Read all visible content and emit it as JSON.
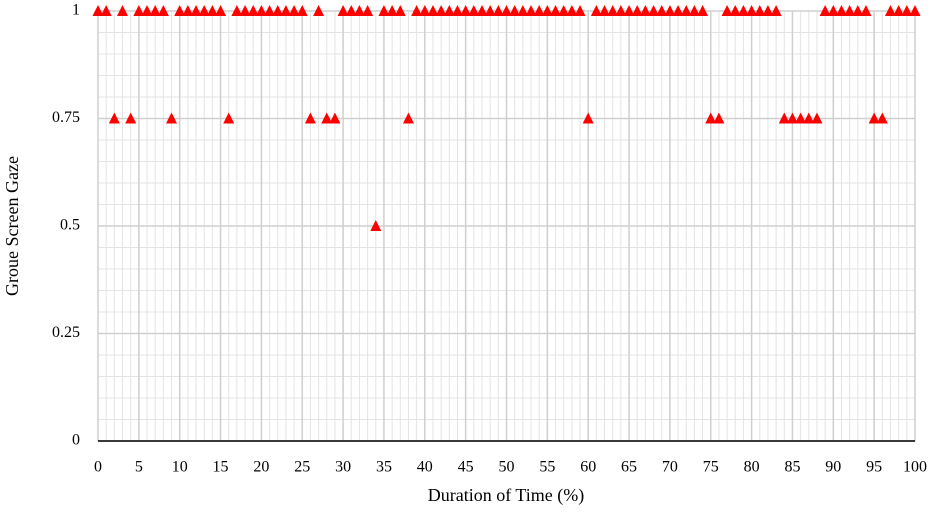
{
  "chart_data": {
    "type": "scatter",
    "x_label": "Duration of Time (%)",
    "y_label": "Groue Screen Gaze",
    "color": "#ff0000",
    "marker": "triangle",
    "grid": true,
    "xlim": [
      0,
      100
    ],
    "xticks": [
      0,
      5,
      10,
      15,
      20,
      25,
      30,
      35,
      40,
      45,
      50,
      55,
      60,
      65,
      70,
      75,
      80,
      85,
      90,
      95,
      100
    ],
    "ylim": [
      0,
      1
    ],
    "yticks": [
      0,
      0.25,
      0.5,
      0.75,
      1
    ],
    "x": [
      0,
      1,
      2,
      3,
      4,
      5,
      6,
      7,
      8,
      9,
      10,
      11,
      12,
      13,
      14,
      15,
      16,
      17,
      18,
      19,
      20,
      21,
      22,
      23,
      24,
      25,
      26,
      27,
      28,
      29,
      30,
      31,
      32,
      33,
      34,
      35,
      36,
      37,
      38,
      39,
      40,
      41,
      42,
      43,
      44,
      45,
      46,
      47,
      48,
      49,
      50,
      51,
      52,
      53,
      54,
      55,
      56,
      57,
      58,
      59,
      60,
      61,
      62,
      63,
      64,
      65,
      66,
      67,
      68,
      69,
      70,
      71,
      72,
      73,
      74,
      75,
      76,
      77,
      78,
      79,
      80,
      81,
      82,
      83,
      84,
      85,
      86,
      87,
      88,
      89,
      90,
      91,
      92,
      93,
      94,
      95,
      96,
      97,
      98,
      99,
      100
    ],
    "values": [
      1,
      1,
      0.75,
      1,
      0.75,
      1,
      1,
      1,
      1,
      0.75,
      1,
      1,
      1,
      1,
      1,
      1,
      0.75,
      1,
      1,
      1,
      1,
      1,
      1,
      1,
      1,
      1,
      0.75,
      1,
      0.75,
      0.75,
      1,
      1,
      1,
      1,
      0.5,
      1,
      1,
      1,
      0.75,
      1,
      1,
      1,
      1,
      1,
      1,
      1,
      1,
      1,
      1,
      1,
      1,
      1,
      1,
      1,
      1,
      1,
      1,
      1,
      1,
      1,
      0.75,
      1,
      1,
      1,
      1,
      1,
      1,
      1,
      1,
      1,
      1,
      1,
      1,
      1,
      1,
      0.75,
      0.75,
      1,
      1,
      1,
      1,
      1,
      1,
      1,
      0.75,
      0.75,
      0.75,
      0.75,
      0.75,
      1,
      1,
      1,
      1,
      1,
      1,
      0.75,
      0.75,
      1,
      1,
      1,
      1
    ]
  }
}
